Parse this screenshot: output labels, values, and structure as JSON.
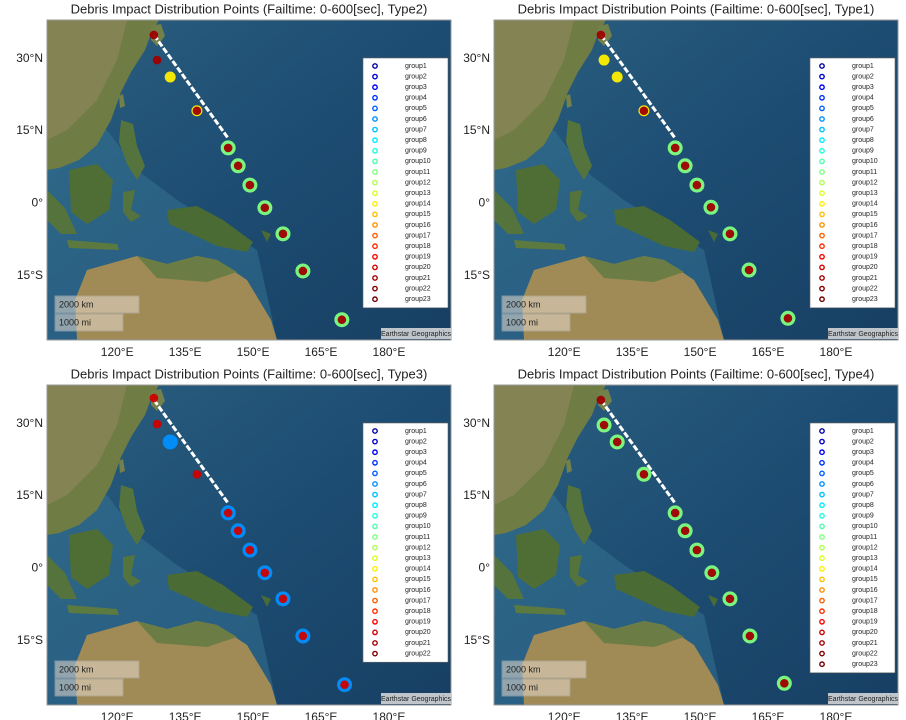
{
  "chart_data": [
    {
      "type": "scatter",
      "title": "Debris Impact Distribution Points (Failtime: 0-600[sec], Type2)",
      "xlim": [
        104.5,
        193.7
      ],
      "ylim": [
        -28.3,
        38
      ],
      "xticks": [
        {
          "value": 120,
          "label": "120°E"
        },
        {
          "value": 135,
          "label": "135°E"
        },
        {
          "value": 150,
          "label": "150°E"
        },
        {
          "value": 165,
          "label": "165°E"
        },
        {
          "value": 180,
          "label": "180°E"
        }
      ],
      "yticks": [
        {
          "value": 30,
          "label": "30°N"
        },
        {
          "value": 15,
          "label": "15°N"
        },
        {
          "value": 0,
          "label": "0°"
        },
        {
          "value": -15,
          "label": "15°S"
        }
      ],
      "scale_km": "2000 km",
      "scale_mi": "1000 mi",
      "attribution": "Earthstar Geographics",
      "series": [
        {
          "name": "group1",
          "color": "#00009f",
          "x": [],
          "values": []
        },
        {
          "name": "group2",
          "color": "#0000cf",
          "x": [],
          "values": []
        },
        {
          "name": "group3",
          "color": "#0000ff",
          "x": [],
          "values": []
        },
        {
          "name": "group4",
          "color": "#0030ff",
          "x": [],
          "values": []
        },
        {
          "name": "group5",
          "color": "#0060ff",
          "x": [],
          "values": []
        },
        {
          "name": "group6",
          "color": "#0090ff",
          "x": [],
          "values": []
        },
        {
          "name": "group7",
          "color": "#00c0ff",
          "x": [],
          "values": []
        },
        {
          "name": "group8",
          "color": "#00efff",
          "x": [],
          "values": []
        },
        {
          "name": "group9",
          "color": "#20ffdf",
          "x": [],
          "values": []
        },
        {
          "name": "group10",
          "color": "#50ffaf",
          "x": [],
          "values": []
        },
        {
          "name": "group11",
          "color": "#80ff80",
          "x": [
            144.5,
            146.7,
            149.3,
            152.6,
            156.6,
            161,
            169.6
          ],
          "values": [
            11.5,
            7.8,
            3.8,
            -0.9,
            -6.3,
            -14,
            -24.1
          ]
        },
        {
          "name": "group12",
          "color": "#afff50",
          "x": [],
          "values": []
        },
        {
          "name": "group13",
          "color": "#dfff20",
          "x": [],
          "values": []
        },
        {
          "name": "group14",
          "color": "#ffef00",
          "x": [
            131.7,
            137.6
          ],
          "values": [
            26.2,
            19.2
          ]
        },
        {
          "name": "group15",
          "color": "#ffc000",
          "x": [],
          "values": []
        },
        {
          "name": "group16",
          "color": "#ff9000",
          "x": [],
          "values": []
        },
        {
          "name": "group17",
          "color": "#ff6000",
          "x": [],
          "values": []
        },
        {
          "name": "group18",
          "color": "#ff3000",
          "x": [],
          "values": []
        },
        {
          "name": "group19",
          "color": "#ff0000",
          "x": [],
          "values": []
        },
        {
          "name": "group20",
          "color": "#cf0000",
          "x": [],
          "values": []
        },
        {
          "name": "group21",
          "color": "#9f0000",
          "x": [
            128.1,
            128.8,
            137.6,
            144.5,
            146.7,
            149.3,
            152.6,
            156.6,
            161,
            169.6
          ],
          "values": [
            34.9,
            29.7,
            19.2,
            11.5,
            7.8,
            3.8,
            -0.9,
            -6.3,
            -14,
            -24.1
          ]
        },
        {
          "name": "group22",
          "color": "#800000",
          "x": [],
          "values": []
        },
        {
          "name": "group23",
          "color": "#700000",
          "x": [],
          "values": []
        }
      ]
    },
    {
      "type": "scatter",
      "title": "Debris Impact Distribution Points (Failtime: 0-600[sec], Type1)",
      "xlim": [
        104.5,
        193.7
      ],
      "ylim": [
        -28.3,
        38
      ],
      "xticks": [
        {
          "value": 120,
          "label": "120°E"
        },
        {
          "value": 135,
          "label": "135°E"
        },
        {
          "value": 150,
          "label": "150°E"
        },
        {
          "value": 165,
          "label": "165°E"
        },
        {
          "value": 180,
          "label": "180°E"
        }
      ],
      "yticks": [
        {
          "value": 30,
          "label": "30°N"
        },
        {
          "value": 15,
          "label": "15°N"
        },
        {
          "value": 0,
          "label": "0°"
        },
        {
          "value": -15,
          "label": "15°S"
        }
      ],
      "scale_km": "2000 km",
      "scale_mi": "1000 mi",
      "attribution": "Earthstar Geographics",
      "series": [
        {
          "name": "group1",
          "color": "#00009f",
          "x": [],
          "values": []
        },
        {
          "name": "group2",
          "color": "#0000cf",
          "x": [],
          "values": []
        },
        {
          "name": "group3",
          "color": "#0000ff",
          "x": [],
          "values": []
        },
        {
          "name": "group4",
          "color": "#0030ff",
          "x": [],
          "values": []
        },
        {
          "name": "group5",
          "color": "#0060ff",
          "x": [],
          "values": []
        },
        {
          "name": "group6",
          "color": "#0090ff",
          "x": [],
          "values": []
        },
        {
          "name": "group7",
          "color": "#00c0ff",
          "x": [],
          "values": []
        },
        {
          "name": "group8",
          "color": "#00efff",
          "x": [],
          "values": []
        },
        {
          "name": "group9",
          "color": "#20ffdf",
          "x": [],
          "values": []
        },
        {
          "name": "group10",
          "color": "#50ffaf",
          "x": [],
          "values": []
        },
        {
          "name": "group11",
          "color": "#80ff80",
          "x": [
            144.5,
            146.7,
            149.3,
            152.4,
            156.6,
            160.8,
            169.4
          ],
          "values": [
            11.5,
            7.8,
            3.8,
            -0.8,
            -6.3,
            -13.8,
            -23.8
          ]
        },
        {
          "name": "group12",
          "color": "#afff50",
          "x": [],
          "values": []
        },
        {
          "name": "group13",
          "color": "#dfff20",
          "x": [],
          "values": []
        },
        {
          "name": "group14",
          "color": "#ffef00",
          "x": [
            128.8,
            131.7,
            137.6
          ],
          "values": [
            29.7,
            26.2,
            19.2
          ]
        },
        {
          "name": "group15",
          "color": "#ffc000",
          "x": [],
          "values": []
        },
        {
          "name": "group16",
          "color": "#ff9000",
          "x": [],
          "values": []
        },
        {
          "name": "group17",
          "color": "#ff6000",
          "x": [],
          "values": []
        },
        {
          "name": "group18",
          "color": "#ff3000",
          "x": [],
          "values": []
        },
        {
          "name": "group19",
          "color": "#ff0000",
          "x": [],
          "values": []
        },
        {
          "name": "group20",
          "color": "#cf0000",
          "x": [],
          "values": []
        },
        {
          "name": "group21",
          "color": "#9f0000",
          "x": [
            128.1,
            137.6,
            144.5,
            146.7,
            149.3,
            152.4,
            156.6,
            160.8,
            169.4
          ],
          "values": [
            34.9,
            19.2,
            11.5,
            7.8,
            3.8,
            -0.8,
            -6.3,
            -13.8,
            -23.8
          ]
        },
        {
          "name": "group22",
          "color": "#800000",
          "x": [],
          "values": []
        },
        {
          "name": "group23",
          "color": "#700000",
          "x": [],
          "values": []
        }
      ]
    },
    {
      "type": "scatter",
      "title": "Debris Impact Distribution Points (Failtime: 0-600[sec], Type3)",
      "xlim": [
        104.5,
        193.7
      ],
      "ylim": [
        -28.3,
        38
      ],
      "xticks": [
        {
          "value": 120,
          "label": "120°E"
        },
        {
          "value": 135,
          "label": "135°E"
        },
        {
          "value": 150,
          "label": "150°E"
        },
        {
          "value": 165,
          "label": "165°E"
        },
        {
          "value": 180,
          "label": "180°E"
        }
      ],
      "yticks": [
        {
          "value": 30,
          "label": "30°N"
        },
        {
          "value": 15,
          "label": "15°N"
        },
        {
          "value": 0,
          "label": "0°"
        },
        {
          "value": -15,
          "label": "15°S"
        }
      ],
      "scale_km": "2000 km",
      "scale_mi": "1000 mi",
      "attribution": "Earthstar Geographics",
      "series": [
        {
          "name": "group1",
          "color": "#00009f",
          "x": [],
          "values": []
        },
        {
          "name": "group2",
          "color": "#0000cf",
          "x": [],
          "values": []
        },
        {
          "name": "group3",
          "color": "#0000ff",
          "x": [],
          "values": []
        },
        {
          "name": "group4",
          "color": "#0030ff",
          "x": [],
          "values": []
        },
        {
          "name": "group5",
          "color": "#0060ff",
          "x": [],
          "values": []
        },
        {
          "name": "group6",
          "color": "#0090ff",
          "x": [
            131.7,
            144.5,
            146.7,
            149.3,
            152.6,
            156.6,
            161,
            170.2
          ],
          "values": [
            26.2,
            11.5,
            7.8,
            3.8,
            -0.9,
            -6.3,
            -14,
            -24.1
          ]
        },
        {
          "name": "group7",
          "color": "#00c0ff",
          "x": [],
          "values": []
        },
        {
          "name": "group8",
          "color": "#00efff",
          "x": [],
          "values": []
        },
        {
          "name": "group9",
          "color": "#20ffdf",
          "x": [],
          "values": []
        },
        {
          "name": "group10",
          "color": "#50ffaf",
          "x": [],
          "values": []
        },
        {
          "name": "group11",
          "color": "#80ff80",
          "x": [],
          "values": []
        },
        {
          "name": "group12",
          "color": "#afff50",
          "x": [],
          "values": []
        },
        {
          "name": "group13",
          "color": "#dfff20",
          "x": [],
          "values": []
        },
        {
          "name": "group14",
          "color": "#ffef00",
          "x": [],
          "values": []
        },
        {
          "name": "group15",
          "color": "#ffc000",
          "x": [],
          "values": []
        },
        {
          "name": "group16",
          "color": "#ff9000",
          "x": [],
          "values": []
        },
        {
          "name": "group17",
          "color": "#ff6000",
          "x": [],
          "values": []
        },
        {
          "name": "group18",
          "color": "#ff3000",
          "x": [],
          "values": []
        },
        {
          "name": "group19",
          "color": "#ff0000",
          "x": [],
          "values": []
        },
        {
          "name": "group20",
          "color": "#cf0000",
          "x": [
            128.1,
            128.8,
            137.6,
            144.5,
            146.7,
            149.3,
            152.6,
            156.6,
            161,
            170.2
          ],
          "values": [
            35.3,
            29.9,
            19.5,
            11.5,
            7.8,
            3.8,
            -0.9,
            -6.3,
            -14,
            -24.1
          ]
        },
        {
          "name": "group21",
          "color": "#9f0000",
          "x": [],
          "values": []
        },
        {
          "name": "group22",
          "color": "#800000",
          "x": [],
          "values": []
        }
      ]
    },
    {
      "type": "scatter",
      "title": "Debris Impact Distribution Points (Failtime: 0-600[sec], Type4)",
      "xlim": [
        104.5,
        193.7
      ],
      "ylim": [
        -28.3,
        38
      ],
      "xticks": [
        {
          "value": 120,
          "label": "120°E"
        },
        {
          "value": 135,
          "label": "135°E"
        },
        {
          "value": 150,
          "label": "150°E"
        },
        {
          "value": 165,
          "label": "165°E"
        },
        {
          "value": 180,
          "label": "180°E"
        }
      ],
      "yticks": [
        {
          "value": 30,
          "label": "30°N"
        },
        {
          "value": 15,
          "label": "15°N"
        },
        {
          "value": 0,
          "label": "0°"
        },
        {
          "value": -15,
          "label": "15°S"
        }
      ],
      "scale_km": "2000 km",
      "scale_mi": "1000 mi",
      "attribution": "Earthstar Geographics",
      "series": [
        {
          "name": "group1",
          "color": "#00009f",
          "x": [],
          "values": []
        },
        {
          "name": "group2",
          "color": "#0000cf",
          "x": [],
          "values": []
        },
        {
          "name": "group3",
          "color": "#0000ff",
          "x": [],
          "values": []
        },
        {
          "name": "group4",
          "color": "#0030ff",
          "x": [],
          "values": []
        },
        {
          "name": "group5",
          "color": "#0060ff",
          "x": [],
          "values": []
        },
        {
          "name": "group6",
          "color": "#0090ff",
          "x": [],
          "values": []
        },
        {
          "name": "group7",
          "color": "#00c0ff",
          "x": [],
          "values": []
        },
        {
          "name": "group8",
          "color": "#00efff",
          "x": [],
          "values": []
        },
        {
          "name": "group9",
          "color": "#20ffdf",
          "x": [],
          "values": []
        },
        {
          "name": "group10",
          "color": "#50ffaf",
          "x": [],
          "values": []
        },
        {
          "name": "group11",
          "color": "#80ff80",
          "x": [
            128.8,
            131.7,
            137.6,
            144.5,
            146.7,
            149.3,
            152.6,
            156.6,
            161,
            168.6
          ],
          "values": [
            29.7,
            26.2,
            19.5,
            11.5,
            7.8,
            3.8,
            -0.9,
            -6.3,
            -14,
            -23.8
          ]
        },
        {
          "name": "group12",
          "color": "#afff50",
          "x": [],
          "values": []
        },
        {
          "name": "group13",
          "color": "#dfff20",
          "x": [],
          "values": []
        },
        {
          "name": "group14",
          "color": "#ffef00",
          "x": [],
          "values": []
        },
        {
          "name": "group15",
          "color": "#ffc000",
          "x": [],
          "values": []
        },
        {
          "name": "group16",
          "color": "#ff9000",
          "x": [],
          "values": []
        },
        {
          "name": "group17",
          "color": "#ff6000",
          "x": [],
          "values": []
        },
        {
          "name": "group18",
          "color": "#ff3000",
          "x": [],
          "values": []
        },
        {
          "name": "group19",
          "color": "#ff0000",
          "x": [],
          "values": []
        },
        {
          "name": "group20",
          "color": "#cf0000",
          "x": [],
          "values": []
        },
        {
          "name": "group21",
          "color": "#9f0000",
          "x": [
            128.1,
            128.8,
            131.7,
            137.6,
            144.5,
            146.7,
            149.3,
            152.6,
            156.6,
            161,
            168.6
          ],
          "values": [
            34.9,
            29.7,
            26.2,
            19.5,
            11.5,
            7.8,
            3.8,
            -0.9,
            -6.3,
            -14,
            -23.8
          ]
        },
        {
          "name": "group22",
          "color": "#800000",
          "x": [],
          "values": []
        },
        {
          "name": "group23",
          "color": "#700000",
          "x": [],
          "values": []
        }
      ]
    }
  ]
}
